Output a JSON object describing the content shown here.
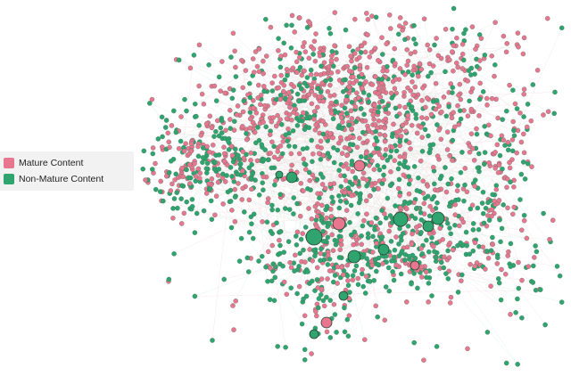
{
  "legend": {
    "items": [
      {
        "label": "Mature Content",
        "color": "#e8768f"
      },
      {
        "label": "Non-Mature Content",
        "color": "#2fa46e"
      }
    ]
  }
}
